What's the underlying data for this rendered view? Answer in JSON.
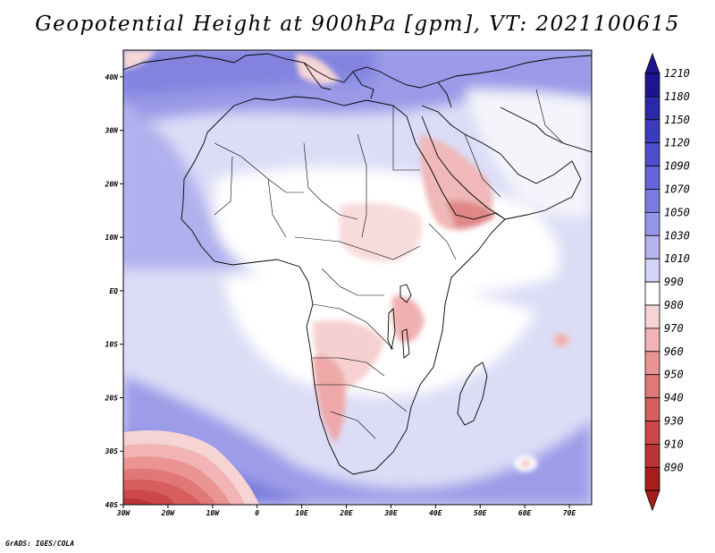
{
  "title": "Geopotential Height at 900hPa [gpm], VT: 2021100615",
  "credit": "GrADS: IGES/COLA",
  "map": {
    "variable": "Geopotential Height",
    "level": "900hPa",
    "units": "gpm",
    "valid_time": "2021100615",
    "region": "Africa",
    "lon_range": [
      -30,
      75
    ],
    "lat_range": [
      -40,
      45
    ],
    "lat_labels": [
      "40N",
      "30N",
      "20N",
      "10N",
      "EQ",
      "10S",
      "20S",
      "30S",
      "40S"
    ],
    "lat_values": [
      40,
      30,
      20,
      10,
      0,
      -10,
      -20,
      -30,
      -40
    ],
    "lon_labels": [
      "30W",
      "20W",
      "10W",
      "0",
      "10E",
      "20E",
      "30E",
      "40E",
      "50E",
      "60E",
      "70E"
    ],
    "lon_values": [
      -30,
      -20,
      -10,
      0,
      10,
      20,
      30,
      40,
      50,
      60,
      70
    ]
  },
  "colorbar": {
    "labels": [
      "1210",
      "1180",
      "1150",
      "1120",
      "1090",
      "1070",
      "1050",
      "1030",
      "1010",
      "990",
      "980",
      "970",
      "960",
      "950",
      "940",
      "930",
      "910",
      "890"
    ],
    "colors": [
      "#1c158f",
      "#2a2aa8",
      "#3b3bbd",
      "#4f4fcc",
      "#6464d8",
      "#7b7be0",
      "#9696e8",
      "#b4b4ef",
      "#d4d4f6",
      "#ffffff",
      "#f7d4d4",
      "#f2b4b4",
      "#ea9494",
      "#e07878",
      "#d85e5e",
      "#cc4848",
      "#bd3434",
      "#a81c1c"
    ]
  }
}
